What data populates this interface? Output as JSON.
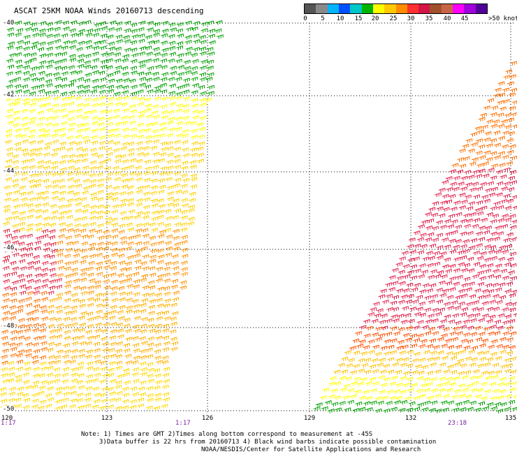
{
  "title": "ASCAT 25KM NOAA Winds 20160713 descending",
  "legend": {
    "colors": [
      "#555555",
      "#8a8a8a",
      "#00b4ff",
      "#0050ff",
      "#00c8c8",
      "#00b400",
      "#ffff00",
      "#ffc800",
      "#ff8c00",
      "#ff3030",
      "#d21446",
      "#a0502d",
      "#c86446",
      "#ff00ff",
      "#a000dc",
      "#500096"
    ],
    "ticks": [
      "0",
      "5",
      "10",
      "15",
      "20",
      "25",
      "30",
      "35",
      "40",
      "45",
      ">50 knots"
    ]
  },
  "axes": {
    "y_labels": [
      "-40",
      "-42",
      "-44",
      "-46",
      "-48",
      "-50"
    ],
    "x_labels": [
      "120",
      "123",
      "126",
      "129",
      "132",
      "135"
    ]
  },
  "times": [
    "1:17",
    "1:17",
    "23:18"
  ],
  "notes": [
    "Note: 1) Times are GMT 2)Times along bottom correspond to measurement at -45S",
    "3)Data buffer is 22 hrs from 20160713 4) Black wind barbs indicate possible contamination",
    "NOAA/NESDIS/Center for Satellite Applications and Research"
  ]
}
